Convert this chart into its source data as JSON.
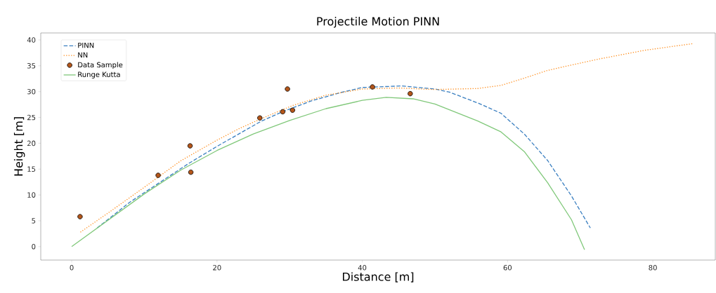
{
  "chart_data": {
    "type": "line",
    "title": "Projectile Motion PINN",
    "xlabel": "Distance [m]",
    "ylabel": "Height [m]",
    "xlim": [
      -4.26,
      88.6
    ],
    "ylim": [
      -2.6,
      41.35
    ],
    "xticks": [
      0,
      20,
      40,
      60,
      80
    ],
    "yticks": [
      0,
      5,
      10,
      15,
      20,
      25,
      30,
      35,
      40
    ],
    "grid": false,
    "legend": "top left",
    "series": [
      {
        "name": "PINN",
        "color": "#3a7fc0",
        "line_style": "dashed",
        "marker": "none",
        "x": [
          3.5,
          8,
          12,
          16,
          20,
          23,
          26,
          29,
          33,
          37,
          40,
          45.5,
          50,
          52,
          55.9,
          59.1,
          62.3,
          65.5,
          68.8,
          71.4
        ],
        "values": [
          3.6,
          8.6,
          12.3,
          16.0,
          19.4,
          21.8,
          24.2,
          26.1,
          28.2,
          29.8,
          30.8,
          31.1,
          30.5,
          29.9,
          27.8,
          25.8,
          21.8,
          16.7,
          9.8,
          3.6
        ]
      },
      {
        "name": "NN",
        "color": "#ff8c1a",
        "line_style": "dotted",
        "marker": "none",
        "x": [
          1.2,
          5,
          10,
          15,
          20,
          23,
          26,
          30.4,
          35,
          40,
          45,
          50,
          55.9,
          59.1,
          62.3,
          65.5,
          72.2,
          78.9,
          85.6
        ],
        "values": [
          2.8,
          6.5,
          11.5,
          16.6,
          20.6,
          22.8,
          24.7,
          27.3,
          29.3,
          30.5,
          30.7,
          30.4,
          30.6,
          31.2,
          32.6,
          34.1,
          36.2,
          38.0,
          39.3
        ]
      },
      {
        "name": "Data Sample",
        "type": "scatter",
        "color": "#b5561a",
        "marker": "circle",
        "x": [
          1.15,
          11.9,
          16.3,
          16.4,
          25.9,
          29.05,
          29.7,
          30.4,
          41.4,
          46.6
        ],
        "values": [
          5.8,
          13.8,
          19.5,
          14.4,
          24.9,
          26.1,
          30.5,
          26.4,
          30.9,
          29.6
        ]
      },
      {
        "name": "Runge Kutta",
        "color": "#80c87a",
        "line_style": "solid",
        "marker": "none",
        "x": [
          0,
          5,
          10,
          15,
          20,
          25,
          30,
          35,
          40,
          43.3,
          47,
          50,
          55.9,
          59.1,
          62.3,
          65.5,
          68.8,
          70.6
        ],
        "values": [
          0,
          5.1,
          10.2,
          14.8,
          18.6,
          21.8,
          24.4,
          26.7,
          28.3,
          28.9,
          28.6,
          27.6,
          24.3,
          22.2,
          18.4,
          12.4,
          5.2,
          -0.6
        ]
      }
    ]
  }
}
